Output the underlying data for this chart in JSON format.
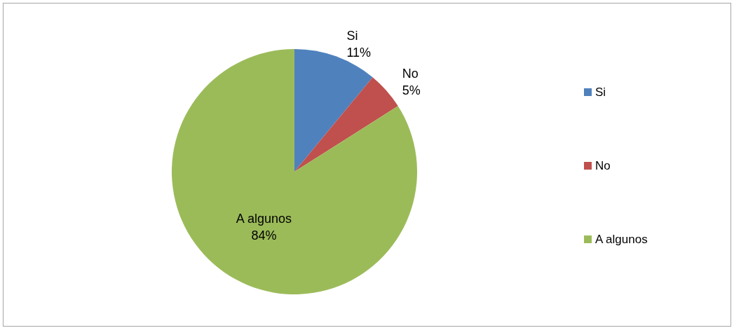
{
  "chart_data": {
    "type": "pie",
    "categories": [
      "Si",
      "No",
      "A algunos"
    ],
    "values": [
      11,
      5,
      84
    ],
    "value_labels": [
      "11%",
      "5%",
      "84%"
    ],
    "colors": [
      "#4f81bd",
      "#c0504d",
      "#9bbb59"
    ],
    "legend": "right"
  }
}
